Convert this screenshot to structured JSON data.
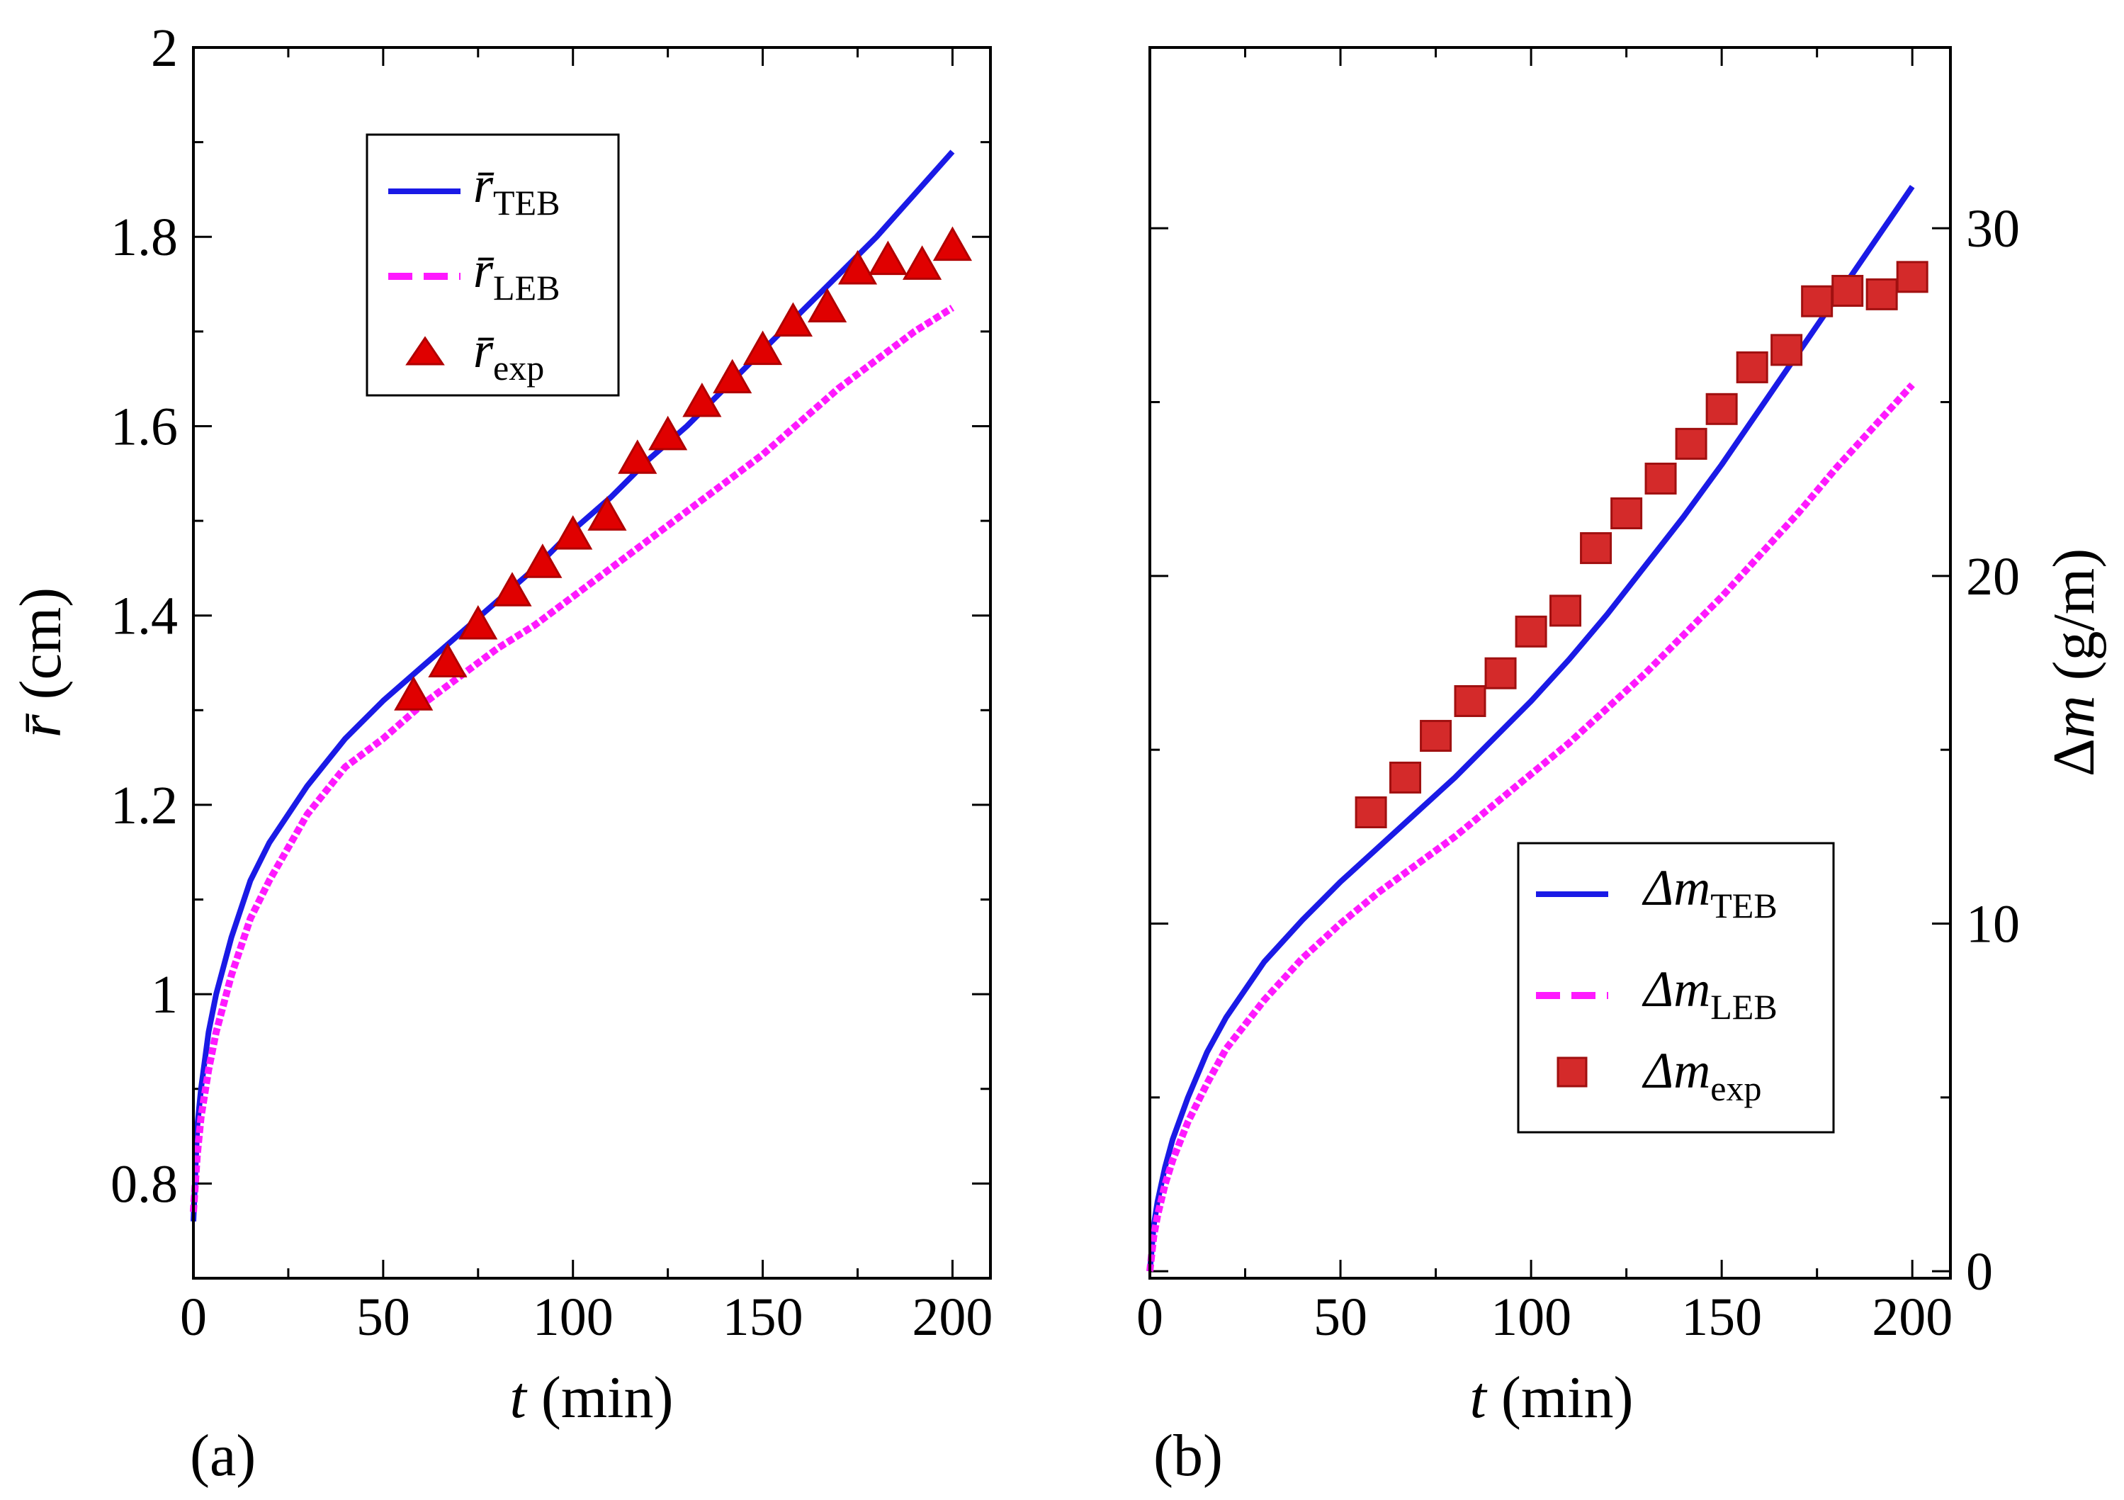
{
  "chart_data": [
    {
      "type": "line",
      "panel_label": "(a)",
      "xlabel": {
        "italic": "t",
        "rest": " (min)"
      },
      "ylabel": {
        "italic": "r̄",
        "rest": " (cm)"
      },
      "xlim": [
        0,
        210
      ],
      "ylim": [
        0.7,
        2.0
      ],
      "xticks": [
        "0",
        "50",
        "100",
        "150",
        "200"
      ],
      "yticks": [
        "0.8",
        "1",
        "1.2",
        "1.4",
        "1.6",
        "1.8",
        "2"
      ],
      "xtick_values": [
        0,
        50,
        100,
        150,
        200
      ],
      "ytick_values": [
        0.8,
        1.0,
        1.2,
        1.4,
        1.6,
        1.8,
        2.0
      ],
      "legend_position": "top-center",
      "series": [
        {
          "name": "TEB",
          "legend": {
            "base": "r̄",
            "sub": "TEB"
          },
          "style": "solid",
          "color": "#1a1ae6",
          "x": [
            0,
            1,
            2,
            4,
            6,
            10,
            15,
            20,
            30,
            40,
            50,
            60,
            70,
            80,
            90,
            100,
            110,
            120,
            130,
            140,
            150,
            160,
            170,
            180,
            190,
            200
          ],
          "y": [
            0.76,
            0.86,
            0.9,
            0.96,
            1.0,
            1.06,
            1.12,
            1.16,
            1.22,
            1.27,
            1.31,
            1.345,
            1.38,
            1.415,
            1.45,
            1.49,
            1.525,
            1.565,
            1.6,
            1.64,
            1.68,
            1.72,
            1.76,
            1.8,
            1.845,
            1.89
          ]
        },
        {
          "name": "LEB",
          "legend": {
            "base": "r̄",
            "sub": "LEB"
          },
          "style": "dashed",
          "color": "#ff19ff",
          "x": [
            0,
            1,
            2,
            4,
            6,
            10,
            15,
            20,
            30,
            40,
            50,
            60,
            70,
            80,
            90,
            100,
            110,
            120,
            130,
            140,
            150,
            160,
            170,
            180,
            190,
            200
          ],
          "y": [
            0.77,
            0.83,
            0.87,
            0.92,
            0.96,
            1.02,
            1.08,
            1.12,
            1.19,
            1.24,
            1.27,
            1.305,
            1.335,
            1.365,
            1.39,
            1.42,
            1.45,
            1.48,
            1.51,
            1.54,
            1.57,
            1.605,
            1.64,
            1.67,
            1.7,
            1.725
          ]
        },
        {
          "name": "exp",
          "legend": {
            "base": "r̄",
            "sub": "exp"
          },
          "style": "triangle",
          "color": "#e00000",
          "x": [
            58,
            67,
            75,
            84,
            92,
            100,
            109,
            117,
            125,
            134,
            142,
            150,
            158,
            167,
            175,
            183,
            192,
            200
          ],
          "y": [
            1.315,
            1.35,
            1.39,
            1.425,
            1.455,
            1.485,
            1.505,
            1.565,
            1.59,
            1.625,
            1.65,
            1.68,
            1.71,
            1.725,
            1.765,
            1.775,
            1.77,
            1.79
          ]
        }
      ]
    },
    {
      "type": "line",
      "panel_label": "(b)",
      "xlabel": {
        "italic": "t",
        "rest": " (min)"
      },
      "ylabel": {
        "italic": "m",
        "pre": "Δ",
        "rest": " (g/m)"
      },
      "y_axis_side": "right",
      "xlim": [
        0,
        210
      ],
      "ylim": [
        -0.2,
        35.2
      ],
      "xticks": [
        "0",
        "50",
        "100",
        "150",
        "200"
      ],
      "yticks": [
        "0",
        "10",
        "20",
        "30"
      ],
      "xtick_values": [
        0,
        50,
        100,
        150,
        200
      ],
      "ytick_values": [
        0,
        10,
        20,
        30
      ],
      "minor_ytick_values": [
        5,
        15,
        25
      ],
      "legend_position": "bottom-right",
      "series": [
        {
          "name": "TEB",
          "legend": {
            "base": "Δm",
            "sub": "TEB"
          },
          "style": "solid",
          "color": "#1a1ae6",
          "x": [
            0,
            1,
            2,
            4,
            6,
            10,
            15,
            20,
            30,
            40,
            50,
            60,
            70,
            80,
            90,
            100,
            110,
            120,
            130,
            140,
            150,
            160,
            170,
            180,
            190,
            200
          ],
          "y": [
            0,
            1.3,
            2.0,
            3.0,
            3.8,
            5.0,
            6.3,
            7.3,
            8.9,
            10.1,
            11.2,
            12.2,
            13.2,
            14.2,
            15.3,
            16.4,
            17.6,
            18.9,
            20.3,
            21.7,
            23.2,
            24.8,
            26.4,
            28.0,
            29.6,
            31.2
          ]
        },
        {
          "name": "LEB",
          "legend": {
            "base": "Δm",
            "sub": "LEB"
          },
          "style": "dashed",
          "color": "#ff19ff",
          "x": [
            0,
            1,
            2,
            4,
            6,
            10,
            15,
            20,
            30,
            40,
            50,
            60,
            70,
            80,
            90,
            100,
            110,
            120,
            130,
            140,
            150,
            160,
            170,
            180,
            190,
            200
          ],
          "y": [
            0,
            1.0,
            1.6,
            2.5,
            3.2,
            4.3,
            5.4,
            6.4,
            7.8,
            9.0,
            10.0,
            10.9,
            11.7,
            12.5,
            13.4,
            14.3,
            15.2,
            16.2,
            17.2,
            18.3,
            19.4,
            20.6,
            21.8,
            23.1,
            24.3,
            25.5
          ]
        },
        {
          "name": "exp",
          "legend": {
            "base": "Δm",
            "sub": "exp"
          },
          "style": "square",
          "color": "#d42a2a",
          "x": [
            58,
            67,
            75,
            84,
            92,
            100,
            109,
            117,
            125,
            134,
            142,
            150,
            158,
            167,
            175,
            183,
            192,
            200
          ],
          "y": [
            13.2,
            14.2,
            15.4,
            16.4,
            17.2,
            18.4,
            19.0,
            20.8,
            21.8,
            22.8,
            23.8,
            24.8,
            26.0,
            26.5,
            27.9,
            28.2,
            28.1,
            28.6
          ]
        }
      ]
    }
  ]
}
